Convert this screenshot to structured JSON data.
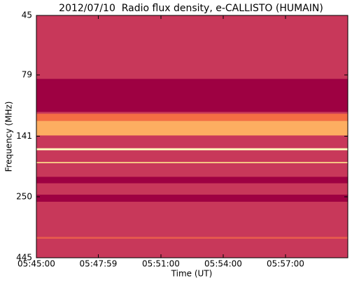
{
  "chart_data": {
    "type": "spectrogram",
    "title": "2012/07/10  Radio flux density, e-CALLISTO (HUMAIN)",
    "x_label": "Time (UT)",
    "y_label": "Frequency (MHz)",
    "xlim": [
      "05:45:00",
      "06:00:00"
    ],
    "xticks": [
      "05:45:00",
      "05:47:59",
      "05:51:00",
      "05:54:00",
      "05:57:00"
    ],
    "ylim": [
      445,
      45
    ],
    "yticks": [
      45,
      79,
      141,
      250,
      445
    ],
    "log_y": true,
    "background": "#c8385a",
    "bands": [
      {
        "from": 82,
        "to": 112,
        "color": "#9e0142"
      },
      {
        "from": 114,
        "to": 122,
        "color": "#f46d43"
      },
      {
        "from": 122,
        "to": 140,
        "color": "#fdae61"
      },
      {
        "from": 158,
        "to": 161,
        "color": "#ffffbf"
      },
      {
        "from": 180,
        "to": 182,
        "color": "#fee08b"
      },
      {
        "from": 207,
        "to": 220,
        "color": "#9e0142"
      },
      {
        "from": 245,
        "to": 262,
        "color": "#9e0142"
      },
      {
        "from": 365,
        "to": 372,
        "color": "#e55a4e"
      }
    ]
  }
}
